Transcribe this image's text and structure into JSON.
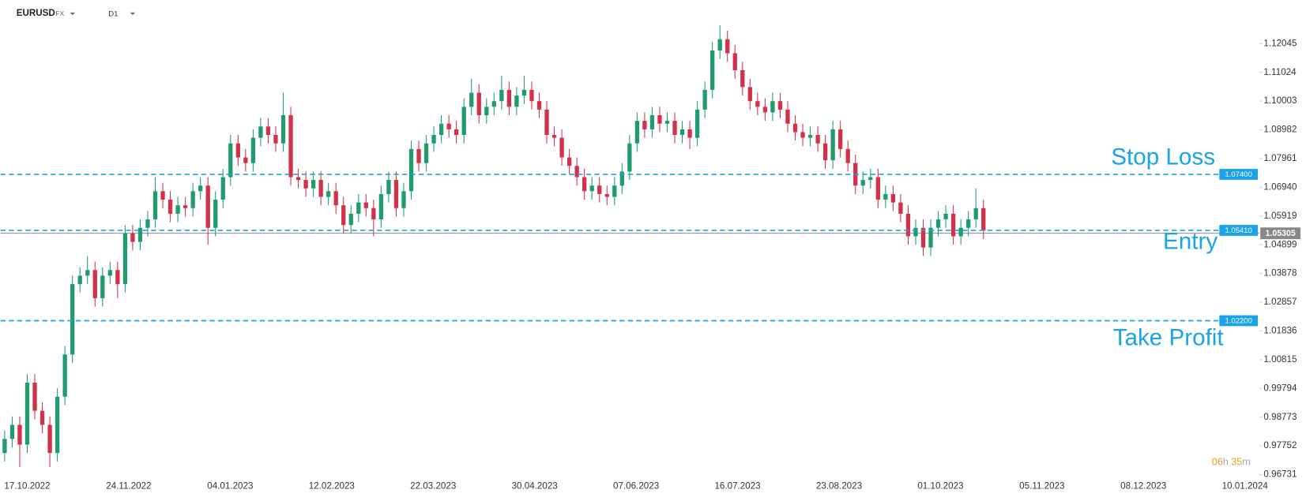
{
  "chart_data": {
    "type": "candlestick",
    "symbol": "EURUSD",
    "market": "FX",
    "timeframe": "D1",
    "up_color": "#1f9b6c",
    "down_color": "#d3304a",
    "ylim": [
      0.9638,
      1.13
    ],
    "yticks": [
      1.12045,
      1.11024,
      1.10003,
      1.08982,
      1.07961,
      {
        "value": 1.0694,
        "label": "1.06940"
      },
      1.05919,
      1.04899,
      1.03878,
      1.02857,
      1.01836,
      1.00815,
      0.99794,
      0.98773,
      0.97752,
      0.96731
    ],
    "x_labels": [
      "17.10.2022",
      "24.11.2022",
      "04.01.2023",
      "12.02.2023",
      "22.03.2023",
      "30.04.2023",
      "07.06.2023",
      "16.07.2023",
      "23.08.2023",
      "01.10.2023",
      "05.11.2023",
      "08.12.2023",
      "10.01.2024"
    ],
    "levels": [
      {
        "name": "Stop Loss",
        "price": {
          "value": 1.074,
          "label": "1.07400"
        },
        "color": "#1aa3e8"
      },
      {
        "name": "Entry",
        "price": {
          "value": 1.0541,
          "label": "1.05410"
        },
        "color": "#1aa3e8"
      },
      {
        "name": "Take Profit",
        "price": {
          "value": 1.022,
          "label": "1.02200"
        },
        "color": "#1aa3e8"
      }
    ],
    "last_price": 1.05305,
    "countdown": {
      "hours": "06",
      "h": "h",
      "minutes": "35",
      "m": "m"
    },
    "candles": [
      [
        0.975,
        0.983,
        0.972,
        0.98
      ],
      [
        0.98,
        0.988,
        0.977,
        0.985
      ],
      [
        0.985,
        0.988,
        0.97,
        0.978
      ],
      [
        0.978,
        1.003,
        0.975,
        1.0
      ],
      [
        1.0,
        1.003,
        0.987,
        0.99
      ],
      [
        0.99,
        0.993,
        0.982,
        0.985
      ],
      [
        0.985,
        0.988,
        0.97,
        0.975
      ],
      [
        0.975,
        0.998,
        0.972,
        0.995
      ],
      [
        0.995,
        1.013,
        0.992,
        1.01
      ],
      [
        1.01,
        1.038,
        1.007,
        1.035
      ],
      [
        1.035,
        1.041,
        1.032,
        1.038
      ],
      [
        1.038,
        1.045,
        1.035,
        1.04
      ],
      [
        1.04,
        1.043,
        1.027,
        1.03
      ],
      [
        1.03,
        1.041,
        1.027,
        1.038
      ],
      [
        1.038,
        1.043,
        1.035,
        1.04
      ],
      [
        1.04,
        1.043,
        1.03,
        1.035
      ],
      [
        1.035,
        1.056,
        1.032,
        1.053
      ],
      [
        1.053,
        1.056,
        1.047,
        1.05
      ],
      [
        1.05,
        1.058,
        1.047,
        1.055
      ],
      [
        1.055,
        1.061,
        1.052,
        1.058
      ],
      [
        1.058,
        1.073,
        1.055,
        1.068
      ],
      [
        1.068,
        1.071,
        1.062,
        1.065
      ],
      [
        1.065,
        1.068,
        1.057,
        1.06
      ],
      [
        1.06,
        1.066,
        1.057,
        1.063
      ],
      [
        1.063,
        1.066,
        1.059,
        1.062
      ],
      [
        1.062,
        1.071,
        1.059,
        1.068
      ],
      [
        1.068,
        1.073,
        1.065,
        1.07
      ],
      [
        1.07,
        1.073,
        1.049,
        1.055
      ],
      [
        1.055,
        1.068,
        1.052,
        1.065
      ],
      [
        1.065,
        1.076,
        1.062,
        1.073
      ],
      [
        1.073,
        1.088,
        1.07,
        1.085
      ],
      [
        1.085,
        1.088,
        1.077,
        1.08
      ],
      [
        1.08,
        1.083,
        1.075,
        1.078
      ],
      [
        1.078,
        1.09,
        1.075,
        1.087
      ],
      [
        1.087,
        1.094,
        1.084,
        1.091
      ],
      [
        1.091,
        1.094,
        1.085,
        1.088
      ],
      [
        1.088,
        1.091,
        1.082,
        1.085
      ],
      [
        1.085,
        1.103,
        1.082,
        1.095
      ],
      [
        1.095,
        1.098,
        1.07,
        1.073
      ],
      [
        1.073,
        1.076,
        1.069,
        1.072
      ],
      [
        1.072,
        1.075,
        1.066,
        1.069
      ],
      [
        1.069,
        1.075,
        1.066,
        1.072
      ],
      [
        1.072,
        1.075,
        1.063,
        1.066
      ],
      [
        1.066,
        1.071,
        1.063,
        1.068
      ],
      [
        1.068,
        1.071,
        1.06,
        1.063
      ],
      [
        1.063,
        1.066,
        1.053,
        1.056
      ],
      [
        1.056,
        1.063,
        1.053,
        1.06
      ],
      [
        1.06,
        1.067,
        1.057,
        1.064
      ],
      [
        1.064,
        1.067,
        1.059,
        1.062
      ],
      [
        1.062,
        1.065,
        1.052,
        1.058
      ],
      [
        1.058,
        1.07,
        1.055,
        1.067
      ],
      [
        1.067,
        1.075,
        1.064,
        1.072
      ],
      [
        1.072,
        1.075,
        1.059,
        1.062
      ],
      [
        1.062,
        1.071,
        1.059,
        1.068
      ],
      [
        1.068,
        1.086,
        1.065,
        1.083
      ],
      [
        1.083,
        1.086,
        1.075,
        1.078
      ],
      [
        1.078,
        1.088,
        1.075,
        1.085
      ],
      [
        1.085,
        1.091,
        1.082,
        1.088
      ],
      [
        1.088,
        1.095,
        1.085,
        1.092
      ],
      [
        1.092,
        1.095,
        1.087,
        1.09
      ],
      [
        1.09,
        1.093,
        1.085,
        1.088
      ],
      [
        1.088,
        1.101,
        1.085,
        1.098
      ],
      [
        1.098,
        1.108,
        1.095,
        1.103
      ],
      [
        1.103,
        1.106,
        1.092,
        1.095
      ],
      [
        1.095,
        1.101,
        1.092,
        1.098
      ],
      [
        1.098,
        1.103,
        1.095,
        1.1
      ],
      [
        1.1,
        1.109,
        1.097,
        1.104
      ],
      [
        1.104,
        1.107,
        1.095,
        1.098
      ],
      [
        1.098,
        1.105,
        1.095,
        1.102
      ],
      [
        1.102,
        1.109,
        1.099,
        1.104
      ],
      [
        1.104,
        1.107,
        1.097,
        1.1
      ],
      [
        1.1,
        1.103,
        1.094,
        1.097
      ],
      [
        1.097,
        1.1,
        1.085,
        1.088
      ],
      [
        1.088,
        1.091,
        1.084,
        1.087
      ],
      [
        1.087,
        1.09,
        1.077,
        1.08
      ],
      [
        1.08,
        1.083,
        1.074,
        1.077
      ],
      [
        1.077,
        1.08,
        1.07,
        1.073
      ],
      [
        1.073,
        1.076,
        1.065,
        1.068
      ],
      [
        1.068,
        1.073,
        1.065,
        1.07
      ],
      [
        1.07,
        1.073,
        1.064,
        1.067
      ],
      [
        1.067,
        1.07,
        1.063,
        1.066
      ],
      [
        1.066,
        1.073,
        1.063,
        1.07
      ],
      [
        1.07,
        1.078,
        1.067,
        1.075
      ],
      [
        1.075,
        1.088,
        1.072,
        1.085
      ],
      [
        1.085,
        1.096,
        1.082,
        1.093
      ],
      [
        1.093,
        1.096,
        1.087,
        1.09
      ],
      [
        1.09,
        1.098,
        1.087,
        1.095
      ],
      [
        1.095,
        1.098,
        1.089,
        1.092
      ],
      [
        1.092,
        1.096,
        1.089,
        1.093
      ],
      [
        1.093,
        1.096,
        1.085,
        1.088
      ],
      [
        1.088,
        1.093,
        1.085,
        1.09
      ],
      [
        1.09,
        1.093,
        1.083,
        1.087
      ],
      [
        1.087,
        1.1,
        1.084,
        1.097
      ],
      [
        1.097,
        1.107,
        1.094,
        1.104
      ],
      [
        1.104,
        1.121,
        1.101,
        1.118
      ],
      [
        1.118,
        1.127,
        1.115,
        1.122
      ],
      [
        1.122,
        1.125,
        1.114,
        1.117
      ],
      [
        1.117,
        1.12,
        1.108,
        1.111
      ],
      [
        1.111,
        1.114,
        1.102,
        1.105
      ],
      [
        1.105,
        1.108,
        1.097,
        1.1
      ],
      [
        1.1,
        1.103,
        1.095,
        1.098
      ],
      [
        1.098,
        1.101,
        1.093,
        1.096
      ],
      [
        1.096,
        1.103,
        1.093,
        1.1
      ],
      [
        1.1,
        1.103,
        1.094,
        1.097
      ],
      [
        1.097,
        1.1,
        1.089,
        1.092
      ],
      [
        1.092,
        1.095,
        1.086,
        1.089
      ],
      [
        1.089,
        1.092,
        1.084,
        1.087
      ],
      [
        1.087,
        1.091,
        1.084,
        1.088
      ],
      [
        1.088,
        1.091,
        1.082,
        1.085
      ],
      [
        1.085,
        1.088,
        1.076,
        1.079
      ],
      [
        1.079,
        1.093,
        1.076,
        1.09
      ],
      [
        1.09,
        1.093,
        1.08,
        1.083
      ],
      [
        1.083,
        1.086,
        1.075,
        1.078
      ],
      [
        1.078,
        1.081,
        1.067,
        1.07
      ],
      [
        1.07,
        1.075,
        1.067,
        1.072
      ],
      [
        1.072,
        1.076,
        1.069,
        1.073
      ],
      [
        1.073,
        1.076,
        1.062,
        1.065
      ],
      [
        1.065,
        1.07,
        1.062,
        1.067
      ],
      [
        1.067,
        1.07,
        1.061,
        1.064
      ],
      [
        1.064,
        1.067,
        1.057,
        1.06
      ],
      [
        1.06,
        1.063,
        1.049,
        1.052
      ],
      [
        1.052,
        1.058,
        1.049,
        1.055
      ],
      [
        1.055,
        1.058,
        1.045,
        1.048
      ],
      [
        1.048,
        1.058,
        1.045,
        1.055
      ],
      [
        1.055,
        1.061,
        1.052,
        1.058
      ],
      [
        1.058,
        1.063,
        1.055,
        1.06
      ],
      [
        1.06,
        1.063,
        1.049,
        1.052
      ],
      [
        1.052,
        1.058,
        1.049,
        1.055
      ],
      [
        1.055,
        1.061,
        1.052,
        1.058
      ],
      [
        1.058,
        1.069,
        1.055,
        1.062
      ],
      [
        1.062,
        1.065,
        1.051,
        1.054
      ]
    ]
  }
}
